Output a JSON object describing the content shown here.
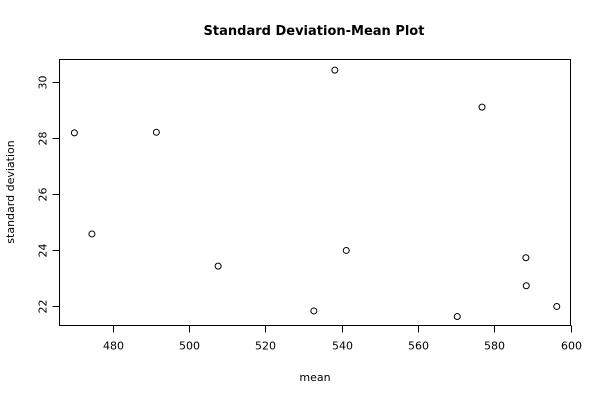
{
  "chart_data": {
    "type": "scatter",
    "title": "Standard Deviation-Mean Plot",
    "xlabel": "mean",
    "ylabel": "standard deviation",
    "xlim": [
      466,
      600
    ],
    "ylim": [
      21.3,
      30.8
    ],
    "xticks": [
      480,
      500,
      520,
      540,
      560,
      580,
      600
    ],
    "yticks": [
      22,
      24,
      26,
      28,
      30
    ],
    "grid": false,
    "points": [
      {
        "x": 469.9,
        "y": 28.18
      },
      {
        "x": 474.5,
        "y": 24.57
      },
      {
        "x": 491.4,
        "y": 28.2
      },
      {
        "x": 507.6,
        "y": 23.42
      },
      {
        "x": 532.7,
        "y": 21.82
      },
      {
        "x": 538.2,
        "y": 30.42
      },
      {
        "x": 541.2,
        "y": 23.98
      },
      {
        "x": 570.3,
        "y": 21.62
      },
      {
        "x": 576.8,
        "y": 29.1
      },
      {
        "x": 588.3,
        "y": 23.72
      },
      {
        "x": 588.4,
        "y": 22.72
      },
      {
        "x": 596.4,
        "y": 21.98
      }
    ]
  }
}
